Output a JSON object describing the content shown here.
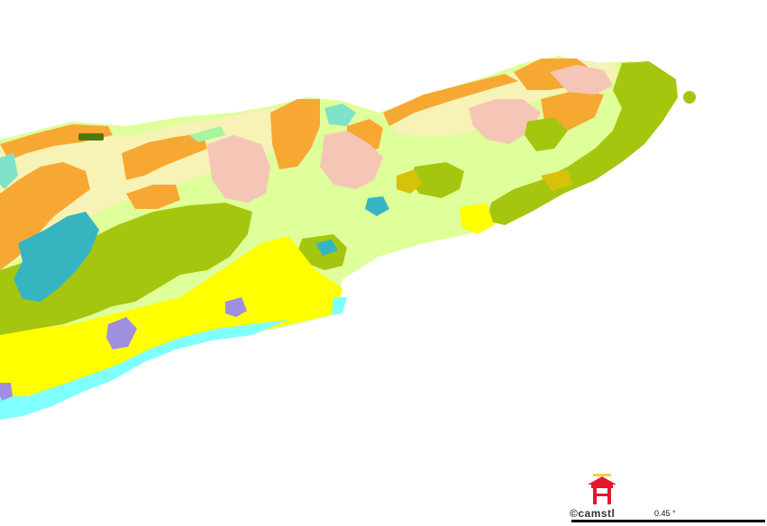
{
  "map": {
    "type": "geologic-map",
    "colors": {
      "white": "#ffffff",
      "orange": "#f7a833",
      "cream": "#f7f2b5",
      "pink": "#f5c6b5",
      "light_green": "#dfff9b",
      "olive_green": "#a5c60e",
      "yellow": "#ffff00",
      "teal": "#36b5c1",
      "cyan": "#80ffff",
      "aqua": "#7fe3c9",
      "purple": "#a08ee0",
      "dark_green": "#4b7a0b",
      "mustard": "#d6c20a",
      "mint": "#a6f5a0"
    }
  },
  "credit": {
    "copyright": "©camstl",
    "logo_icon": "red-gate-logo-icon"
  },
  "scale": {
    "label": "0.45 °"
  }
}
